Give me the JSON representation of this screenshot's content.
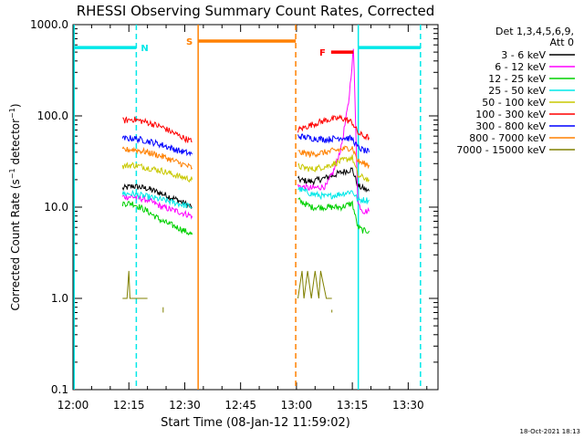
{
  "chart_data": {
    "type": "line",
    "title": "RHESSI Observing Summary Count Rates, Corrected",
    "xlabel": "Start Time (08-Jan-12 11:59:02)",
    "ylabel": "Corrected Count Rate (s^-1 detector^-1)",
    "ylabel_parts": {
      "main": "Corrected Count Rate (s",
      "sup1": "−1",
      "mid": " detector",
      "sup2": "−1",
      "end": ")"
    },
    "yscale": "log",
    "ylim": [
      0.1,
      1000
    ],
    "xlim_minutes": [
      0,
      98
    ],
    "x_ticks": [
      {
        "minute": 0,
        "label": "12:00"
      },
      {
        "minute": 15,
        "label": "12:15"
      },
      {
        "minute": 30,
        "label": "12:30"
      },
      {
        "minute": 45,
        "label": "12:45"
      },
      {
        "minute": 60,
        "label": "13:00"
      },
      {
        "minute": 75,
        "label": "13:15"
      },
      {
        "minute": 90,
        "label": "13:30"
      }
    ],
    "y_ticks": [
      {
        "value": 0.1,
        "label": "0.1"
      },
      {
        "value": 1,
        "label": "1.0"
      },
      {
        "value": 10,
        "label": "10.0"
      },
      {
        "value": 100,
        "label": "100.0"
      },
      {
        "value": 1000,
        "label": "1000.0"
      }
    ],
    "legend": {
      "header_lines": [
        "Det 1,3,4,5,6,9,",
        "Att 0"
      ],
      "entries": [
        {
          "label": "3 - 6 keV",
          "color": "#000000"
        },
        {
          "label": "6 - 12 keV",
          "color": "#ff00ff"
        },
        {
          "label": "12 - 25 keV",
          "color": "#00d000"
        },
        {
          "label": "25 - 50 keV",
          "color": "#00e8e8"
        },
        {
          "label": "50 - 100 keV",
          "color": "#c8c800"
        },
        {
          "label": "100 - 300 keV",
          "color": "#ff0000"
        },
        {
          "label": "300 - 800 keV",
          "color": "#0000ff"
        },
        {
          "label": "800 - 7000 keV",
          "color": "#ff8000"
        },
        {
          "label": "7000 - 15000 keV",
          "color": "#808000"
        }
      ]
    },
    "series": [
      {
        "name": "3 - 6 keV",
        "color": "#000000",
        "segments": [
          {
            "x": [
              13.3,
              16,
              20,
              24,
              28,
              32
            ],
            "y": [
              16,
              17,
              16,
              14,
              12,
              10
            ]
          },
          {
            "x": [
              60.4,
              64,
              68,
              72,
              75,
              76.5,
              78,
              79.5
            ],
            "y": [
              20,
              19,
              21,
              24,
              26,
              17,
              16,
              15
            ]
          }
        ]
      },
      {
        "name": "6 - 12 keV",
        "color": "#ff00ff",
        "segments": [
          {
            "x": [
              13.3,
              16,
              20,
              24,
              28,
              32
            ],
            "y": [
              13,
              13,
              12,
              10,
              9,
              8
            ]
          },
          {
            "x": [
              60.4,
              64,
              68,
              70,
              72,
              74,
              75.3,
              76.5,
              78,
              79.5
            ],
            "y": [
              17,
              16,
              17,
              25,
              45,
              140,
              550,
              11,
              9,
              9
            ]
          }
        ]
      },
      {
        "name": "12 - 25 keV",
        "color": "#00d000",
        "segments": [
          {
            "x": [
              13.3,
              16,
              20,
              24,
              28,
              32
            ],
            "y": [
              11,
              11,
              9,
              7,
              6,
              5
            ]
          },
          {
            "x": [
              60.4,
              64,
              68,
              72,
              75,
              76.5,
              78,
              79.5
            ],
            "y": [
              12,
              10,
              10,
              10,
              11,
              6,
              5.5,
              5.5
            ]
          }
        ]
      },
      {
        "name": "25 - 50 keV",
        "color": "#00e8e8",
        "segments": [
          {
            "x": [
              13.3,
              16,
              20,
              24,
              28,
              32
            ],
            "y": [
              14,
              14,
              13,
              12,
              11,
              10
            ]
          },
          {
            "x": [
              60.4,
              64,
              68,
              72,
              75,
              76.5,
              78,
              79.5
            ],
            "y": [
              16,
              14,
              13,
              14,
              15,
              12,
              12,
              12
            ]
          }
        ]
      },
      {
        "name": "50 - 100 keV",
        "color": "#c8c800",
        "segments": [
          {
            "x": [
              13.3,
              16,
              20,
              24,
              28,
              32
            ],
            "y": [
              28,
              29,
              27,
              25,
              22,
              20
            ]
          },
          {
            "x": [
              60.4,
              64,
              68,
              72,
              75,
              76.5,
              78,
              79.5
            ],
            "y": [
              28,
              26,
              28,
              32,
              35,
              22,
              21,
              20
            ]
          }
        ]
      },
      {
        "name": "100 - 300 keV",
        "color": "#ff0000",
        "segments": [
          {
            "x": [
              13.3,
              16,
              20,
              24,
              28,
              32
            ],
            "y": [
              88,
              92,
              85,
              75,
              62,
              52
            ]
          },
          {
            "x": [
              60.4,
              64,
              68,
              72,
              75,
              76.5,
              78,
              79.5
            ],
            "y": [
              70,
              80,
              90,
              95,
              85,
              65,
              60,
              58
            ]
          }
        ]
      },
      {
        "name": "300 - 800 keV",
        "color": "#0000ff",
        "segments": [
          {
            "x": [
              13.3,
              16,
              20,
              24,
              28,
              32
            ],
            "y": [
              56,
              57,
              53,
              48,
              42,
              38
            ]
          },
          {
            "x": [
              60.4,
              64,
              68,
              72,
              75,
              76.5,
              78,
              79.5
            ],
            "y": [
              60,
              57,
              55,
              58,
              56,
              45,
              42,
              40
            ]
          }
        ]
      },
      {
        "name": "800 - 7000 keV",
        "color": "#ff8000",
        "segments": [
          {
            "x": [
              13.3,
              16,
              20,
              24,
              28,
              32
            ],
            "y": [
              42,
              43,
              40,
              36,
              31,
              27
            ]
          },
          {
            "x": [
              60.4,
              64,
              68,
              72,
              75,
              76.5,
              78,
              79.5
            ],
            "y": [
              40,
              38,
              40,
              43,
              45,
              32,
              30,
              29
            ]
          }
        ]
      },
      {
        "name": "7000 - 15000 keV",
        "color": "#808000",
        "segments": [
          {
            "x": [
              13.3,
              14.5,
              15,
              15.3,
              15.6,
              16.5,
              20
            ],
            "y": [
              1,
              1,
              2,
              1,
              1,
              1,
              1
            ]
          },
          {
            "x": [
              24.2,
              24.2
            ],
            "y": [
              0.8,
              0.7
            ]
          },
          {
            "x": [
              60.4,
              61.5,
              62,
              63,
              64,
              65,
              66,
              66.5,
              68,
              69.5
            ],
            "y": [
              1,
              2,
              1,
              2,
              1,
              2,
              1,
              2,
              1,
              1
            ]
          },
          {
            "x": [
              69.5,
              69.5
            ],
            "y": [
              0.75,
              0.7
            ]
          }
        ]
      }
    ],
    "time_markers": [
      {
        "name": "night-start-1",
        "minute": 0.3,
        "style": "solid",
        "color": "#00e8e8"
      },
      {
        "name": "night-end-1",
        "minute": 17,
        "style": "dashed",
        "color": "#00e8e8"
      },
      {
        "name": "saa-start",
        "minute": 33.6,
        "style": "solid",
        "color": "#ff8000"
      },
      {
        "name": "saa-end",
        "minute": 59.8,
        "style": "dashed",
        "color": "#ff8000"
      },
      {
        "name": "night-start-2",
        "minute": 76.6,
        "style": "solid",
        "color": "#00e8e8"
      },
      {
        "name": "night-end-2",
        "minute": 93.3,
        "style": "dashed",
        "color": "#00e8e8"
      }
    ],
    "flag_bars": [
      {
        "name": "night-bar-1",
        "label": "N",
        "x": [
          0.3,
          17
        ],
        "y": 560,
        "color": "#00e8e8"
      },
      {
        "name": "saa-bar",
        "label": "S",
        "x": [
          33.6,
          59.8
        ],
        "y": 660,
        "color": "#ff8000"
      },
      {
        "name": "flare-bar",
        "label": "F",
        "x": [
          69.3,
          75.3
        ],
        "y": 500,
        "color": "#ff0000"
      },
      {
        "name": "night-bar-2",
        "label": "",
        "x": [
          76.6,
          93.3
        ],
        "y": 560,
        "color": "#00e8e8"
      }
    ],
    "timestamp": "18-Oct-2021 18:13"
  }
}
